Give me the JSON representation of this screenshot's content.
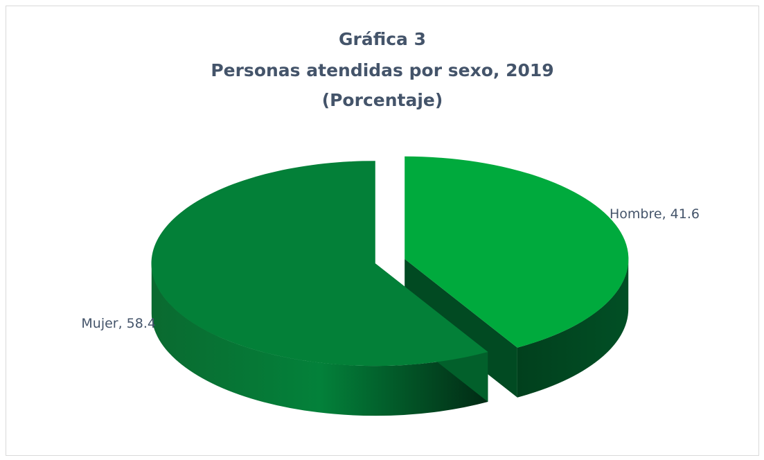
{
  "chart_data": {
    "type": "pie",
    "title_lines": [
      "Gráfica 3",
      "Personas atendidas por sexo, 2019",
      "(Porcentaje)"
    ],
    "categories": [
      "Hombre",
      "Mujer"
    ],
    "values": [
      41.6,
      58.4
    ],
    "data_labels": [
      "Hombre, 41.6",
      "Mujer, 58.4"
    ],
    "colors": {
      "Hombre": "#00aa3d",
      "Mujer": "#038038"
    },
    "legend": "none",
    "style": "3d exploded"
  }
}
